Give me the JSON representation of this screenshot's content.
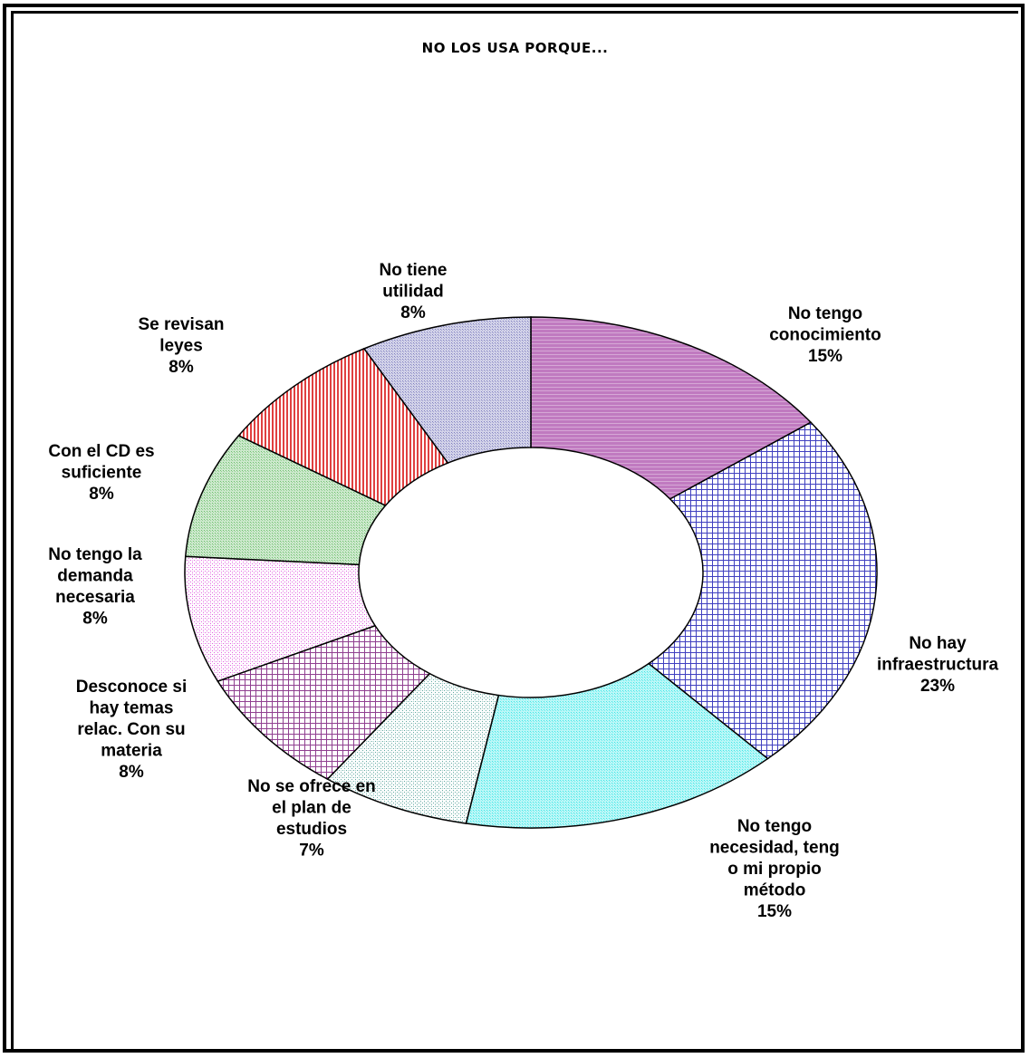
{
  "chart_data": {
    "type": "donut",
    "title": "NO LOS USA PORQUE...",
    "slices": [
      {
        "label": [
          "No tengo",
          "conocimiento"
        ],
        "percent_label": "15%",
        "value": 15,
        "color": "#c07ac0",
        "pattern": "hline"
      },
      {
        "label": [
          "No hay",
          "infraestructura"
        ],
        "percent_label": "23%",
        "value": 23,
        "color": "#4040c0",
        "pattern": "grid"
      },
      {
        "label": [
          "No tengo",
          "necesidad, teng",
          "o mi propio",
          "método"
        ],
        "percent_label": "15%",
        "value": 15,
        "color": "#40e8e8",
        "pattern": "fine"
      },
      {
        "label": [
          "No se ofrece en",
          "el plan de",
          "estudios"
        ],
        "percent_label": "7%",
        "value": 7,
        "color": "#60a8a0",
        "pattern": "dots"
      },
      {
        "label": [
          "Desconoce si",
          "hay temas",
          "relac. Con su",
          "materia"
        ],
        "percent_label": "8%",
        "value": 8,
        "color": "#904090",
        "pattern": "grid"
      },
      {
        "label": [
          "No tengo la",
          "demanda",
          "necesaria"
        ],
        "percent_label": "8%",
        "value": 8,
        "color": "#e060e0",
        "pattern": "dots"
      },
      {
        "label": [
          "Con el CD es",
          "suficiente"
        ],
        "percent_label": "8%",
        "value": 8,
        "color": "#70c070",
        "pattern": "fine"
      },
      {
        "label": [
          "Se revisan",
          "leyes"
        ],
        "percent_label": "8%",
        "value": 8,
        "color": "#e04040",
        "pattern": "vline"
      },
      {
        "label": [
          "No tiene",
          "utilidad"
        ],
        "percent_label": "8%",
        "value": 8,
        "color": "#8080c0",
        "pattern": "fine"
      }
    ]
  }
}
